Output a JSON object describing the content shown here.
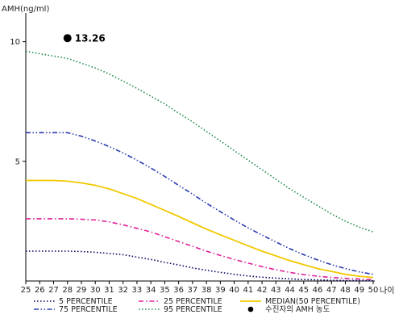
{
  "chart_data": {
    "type": "line",
    "ylabel": "AMH(ng/ml)",
    "xlabel": "나이",
    "x": [
      25,
      26,
      27,
      28,
      29,
      30,
      31,
      32,
      33,
      34,
      35,
      36,
      37,
      38,
      39,
      40,
      41,
      42,
      43,
      44,
      45,
      46,
      47,
      48,
      49,
      50
    ],
    "xlim": [
      25,
      50
    ],
    "ylim": [
      0,
      11
    ],
    "yticks": [
      5,
      10
    ],
    "series": [
      {
        "name": "5 PERCENTILE",
        "color": "#000060",
        "dash": "dot",
        "values": [
          1.25,
          1.25,
          1.25,
          1.25,
          1.23,
          1.2,
          1.15,
          1.1,
          1.0,
          0.9,
          0.78,
          0.67,
          0.55,
          0.45,
          0.36,
          0.28,
          0.21,
          0.16,
          0.12,
          0.09,
          0.06,
          0.05,
          0.03,
          0.02,
          0.02,
          0.01
        ]
      },
      {
        "name": "25 PERCENTILE",
        "color": "#e0209a",
        "dash": "dashdot",
        "values": [
          2.6,
          2.6,
          2.6,
          2.6,
          2.58,
          2.55,
          2.47,
          2.35,
          2.2,
          2.05,
          1.85,
          1.65,
          1.45,
          1.25,
          1.07,
          0.9,
          0.75,
          0.6,
          0.47,
          0.36,
          0.27,
          0.2,
          0.15,
          0.11,
          0.08,
          0.06
        ]
      },
      {
        "name": "MEDIAN(50 PERCENTILE)",
        "color": "#f2c800",
        "dash": "solid",
        "values": [
          4.2,
          4.2,
          4.2,
          4.17,
          4.1,
          4.0,
          3.85,
          3.65,
          3.45,
          3.2,
          2.95,
          2.7,
          2.43,
          2.17,
          1.93,
          1.7,
          1.47,
          1.25,
          1.05,
          0.85,
          0.68,
          0.52,
          0.4,
          0.28,
          0.2,
          0.15
        ]
      },
      {
        "name": "75 PERCENTILE",
        "color": "#2a3bb0",
        "dash": "dashdotdot",
        "values": [
          6.2,
          6.2,
          6.2,
          6.2,
          6.05,
          5.85,
          5.62,
          5.35,
          5.05,
          4.72,
          4.37,
          4.0,
          3.63,
          3.25,
          2.9,
          2.55,
          2.22,
          1.92,
          1.63,
          1.35,
          1.1,
          0.88,
          0.68,
          0.52,
          0.38,
          0.28
        ]
      },
      {
        "name": "95 PERCENTILE",
        "color": "#1d8a4a",
        "dash": "dot",
        "values": [
          9.6,
          9.5,
          9.4,
          9.3,
          9.1,
          8.9,
          8.65,
          8.35,
          8.05,
          7.72,
          7.4,
          7.02,
          6.65,
          6.25,
          5.85,
          5.45,
          5.05,
          4.65,
          4.25,
          3.85,
          3.5,
          3.15,
          2.8,
          2.5,
          2.25,
          2.05
        ]
      }
    ],
    "point": {
      "name": "수진자의 AMH 농도",
      "x": 28,
      "y": 10.15,
      "label": "13.26",
      "color": "#000000"
    },
    "legend": {
      "position": "bottom"
    }
  }
}
